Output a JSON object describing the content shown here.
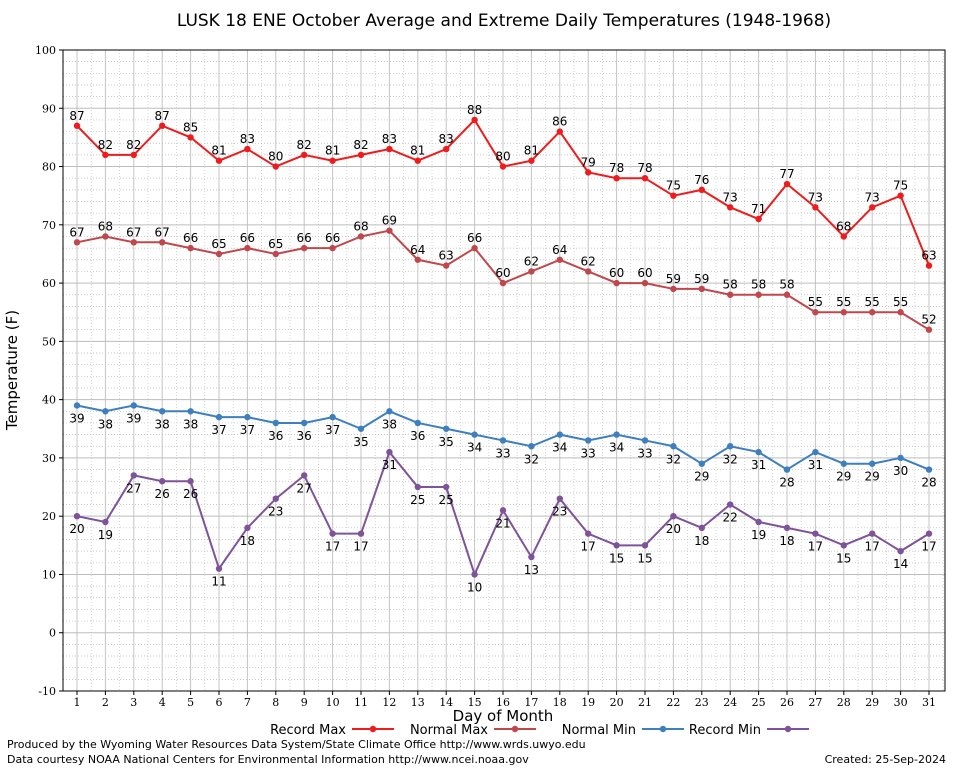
{
  "chart_data": {
    "type": "line",
    "title": "LUSK 18 ENE October Average and Extreme Daily Temperatures (1948-1968)",
    "xlabel": "Day of Month",
    "ylabel": "Temperature (F)",
    "ylim": [
      -10,
      100
    ],
    "yticks": [
      -10,
      0,
      10,
      20,
      30,
      40,
      50,
      60,
      70,
      80,
      90,
      100
    ],
    "grid": true,
    "legend_position": "bottom",
    "x": [
      1,
      2,
      3,
      4,
      5,
      6,
      7,
      8,
      9,
      10,
      11,
      12,
      13,
      14,
      15,
      16,
      17,
      18,
      19,
      20,
      21,
      22,
      23,
      24,
      25,
      26,
      27,
      28,
      29,
      30,
      31
    ],
    "series": [
      {
        "name": "Record Max",
        "color": "#ee1c1c",
        "values": [
          87,
          82,
          82,
          87,
          85,
          81,
          83,
          80,
          82,
          81,
          82,
          83,
          81,
          83,
          88,
          80,
          81,
          86,
          79,
          78,
          78,
          75,
          76,
          73,
          71,
          77,
          73,
          68,
          73,
          75,
          63
        ]
      },
      {
        "name": "Normal Max",
        "color": "#c0484c",
        "values": [
          67,
          68,
          67,
          67,
          66,
          65,
          66,
          65,
          66,
          66,
          68,
          69,
          64,
          63,
          66,
          60,
          62,
          64,
          62,
          60,
          60,
          59,
          59,
          58,
          58,
          58,
          55,
          55,
          55,
          55,
          52
        ]
      },
      {
        "name": "Normal Min",
        "color": "#3d7fbf",
        "values": [
          39,
          38,
          39,
          38,
          38,
          37,
          37,
          36,
          36,
          37,
          35,
          38,
          36,
          35,
          34,
          33,
          32,
          34,
          33,
          34,
          33,
          32,
          29,
          32,
          31,
          28,
          31,
          29,
          29,
          30,
          28
        ]
      },
      {
        "name": "Record Min",
        "color": "#7e5399",
        "values": [
          20,
          19,
          27,
          26,
          26,
          11,
          18,
          23,
          27,
          17,
          17,
          31,
          25,
          25,
          10,
          21,
          13,
          23,
          17,
          15,
          15,
          20,
          18,
          22,
          19,
          18,
          17,
          15,
          17,
          14,
          17
        ]
      }
    ]
  },
  "footer": {
    "line1": "Produced by the Wyoming Water Resources Data System/State Climate Office http://www.wrds.uwyo.edu",
    "line2": "Data courtesy NOAA National Centers for Environmental Information http://www.ncei.noaa.gov",
    "created": "Created:  25-Sep-2024"
  }
}
